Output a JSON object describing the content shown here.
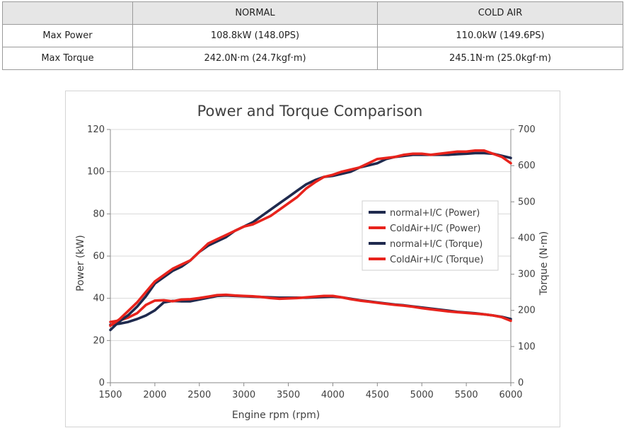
{
  "spec_table": {
    "header": [
      "",
      "NORMAL",
      "COLD AIR"
    ],
    "rows": [
      {
        "label": "Max Power",
        "normal": "108.8kW (148.0PS)",
        "cold_air": "110.0kW (149.6PS)"
      },
      {
        "label": "Max Torque",
        "normal": "242.0N·m (24.7kgf·m)",
        "cold_air": "245.1N·m (25.0kgf·m)"
      }
    ]
  },
  "chart_data": {
    "type": "line",
    "title": "Power and Torque Comparison",
    "xlabel": "Engine rpm (rpm)",
    "ylabel": "Power (kW)",
    "y2label": "Torque (N·m)",
    "xlim": [
      1500,
      6000
    ],
    "ylim": [
      0,
      120
    ],
    "y2lim": [
      0,
      700
    ],
    "x_ticks": [
      1500,
      2000,
      2500,
      3000,
      3500,
      4000,
      4500,
      5000,
      5500,
      6000
    ],
    "y_ticks": [
      0,
      20,
      40,
      60,
      80,
      100,
      120
    ],
    "y2_ticks": [
      0,
      100,
      200,
      300,
      400,
      500,
      600,
      700
    ],
    "grid": "horizontal",
    "legend_position": "right",
    "series": [
      {
        "name": "normal+I/C (Power)",
        "axis": "left",
        "color": "#1f2a4e",
        "x": [
          1500,
          1600,
          1700,
          1800,
          1900,
          2000,
          2100,
          2200,
          2300,
          2400,
          2500,
          2600,
          2700,
          2800,
          2900,
          3000,
          3100,
          3200,
          3300,
          3400,
          3500,
          3600,
          3700,
          3800,
          3900,
          4000,
          4100,
          4200,
          4300,
          4400,
          4500,
          4600,
          4700,
          4800,
          4900,
          5000,
          5100,
          5200,
          5300,
          5400,
          5500,
          5600,
          5700,
          5800,
          5900,
          6000
        ],
        "y": [
          25,
          29,
          32,
          36,
          41,
          47,
          50,
          53,
          55,
          58,
          62,
          65,
          67,
          69,
          72,
          74,
          76,
          79,
          82,
          85,
          88,
          91,
          94,
          96,
          97.5,
          98,
          99,
          100,
          102,
          103,
          104,
          106,
          107,
          107.5,
          108,
          108,
          108,
          108,
          108,
          108.3,
          108.5,
          108.8,
          108.8,
          108.5,
          107.5,
          106.5
        ]
      },
      {
        "name": "ColdAir+I/C (Power)",
        "axis": "left",
        "color": "#e8231c",
        "x": [
          1500,
          1600,
          1700,
          1800,
          1900,
          2000,
          2100,
          2200,
          2300,
          2400,
          2500,
          2600,
          2700,
          2800,
          2900,
          3000,
          3100,
          3200,
          3300,
          3400,
          3500,
          3600,
          3700,
          3800,
          3900,
          4000,
          4100,
          4200,
          4300,
          4400,
          4500,
          4600,
          4700,
          4800,
          4900,
          5000,
          5100,
          5200,
          5300,
          5400,
          5500,
          5600,
          5700,
          5800,
          5900,
          6000
        ],
        "y": [
          27,
          30,
          34,
          38,
          43,
          48,
          51,
          54,
          56,
          58,
          62,
          66,
          68,
          70,
          72,
          74,
          75,
          77,
          79,
          82,
          85,
          88,
          92,
          95,
          97.5,
          98.5,
          100,
          101,
          102,
          104,
          106,
          106.5,
          107,
          108,
          108.5,
          108.5,
          108,
          108.5,
          109,
          109.5,
          109.5,
          110,
          110,
          108.5,
          107,
          104
        ]
      },
      {
        "name": "normal+I/C (Torque)",
        "axis": "right",
        "color": "#1f2a4e",
        "x": [
          1500,
          1600,
          1700,
          1800,
          1900,
          2000,
          2100,
          2200,
          2300,
          2400,
          2500,
          2600,
          2700,
          2800,
          2900,
          3000,
          3100,
          3200,
          3300,
          3400,
          3500,
          3600,
          3700,
          3800,
          3900,
          4000,
          4100,
          4200,
          4300,
          4400,
          4500,
          4600,
          4700,
          4800,
          4900,
          5000,
          5100,
          5200,
          5300,
          5400,
          5500,
          5600,
          5700,
          5800,
          5900,
          6000
        ],
        "y": [
          160,
          163,
          168,
          176,
          186,
          200,
          222,
          226,
          225,
          225,
          230,
          235,
          240,
          241,
          240,
          239,
          238,
          237,
          236,
          235,
          235,
          235,
          235,
          236,
          237,
          238,
          236,
          232,
          228,
          225,
          222,
          219,
          216,
          214,
          211,
          208,
          205,
          202,
          199,
          196,
          194,
          192,
          189,
          186,
          182,
          176
        ]
      },
      {
        "name": "ColdAir+I/C (Torque)",
        "axis": "right",
        "color": "#e8231c",
        "x": [
          1500,
          1600,
          1700,
          1800,
          1900,
          2000,
          2100,
          2200,
          2300,
          2400,
          2500,
          2600,
          2700,
          2800,
          2900,
          3000,
          3100,
          3200,
          3300,
          3400,
          3500,
          3600,
          3700,
          3800,
          3900,
          4000,
          4100,
          4200,
          4300,
          4400,
          4500,
          4600,
          4700,
          4800,
          4900,
          5000,
          5100,
          5200,
          5300,
          5400,
          5500,
          5600,
          5700,
          5800,
          5900,
          6000
        ],
        "y": [
          168,
          172,
          180,
          192,
          215,
          227,
          228,
          225,
          230,
          231,
          234,
          238,
          242,
          243,
          241,
          240,
          239,
          237,
          234,
          232,
          233,
          234,
          236,
          238,
          240,
          240,
          236,
          231,
          227,
          224,
          221,
          218,
          215,
          213,
          210,
          206,
          203,
          200,
          197,
          195,
          193,
          191,
          189,
          186,
          181,
          171
        ]
      }
    ]
  }
}
